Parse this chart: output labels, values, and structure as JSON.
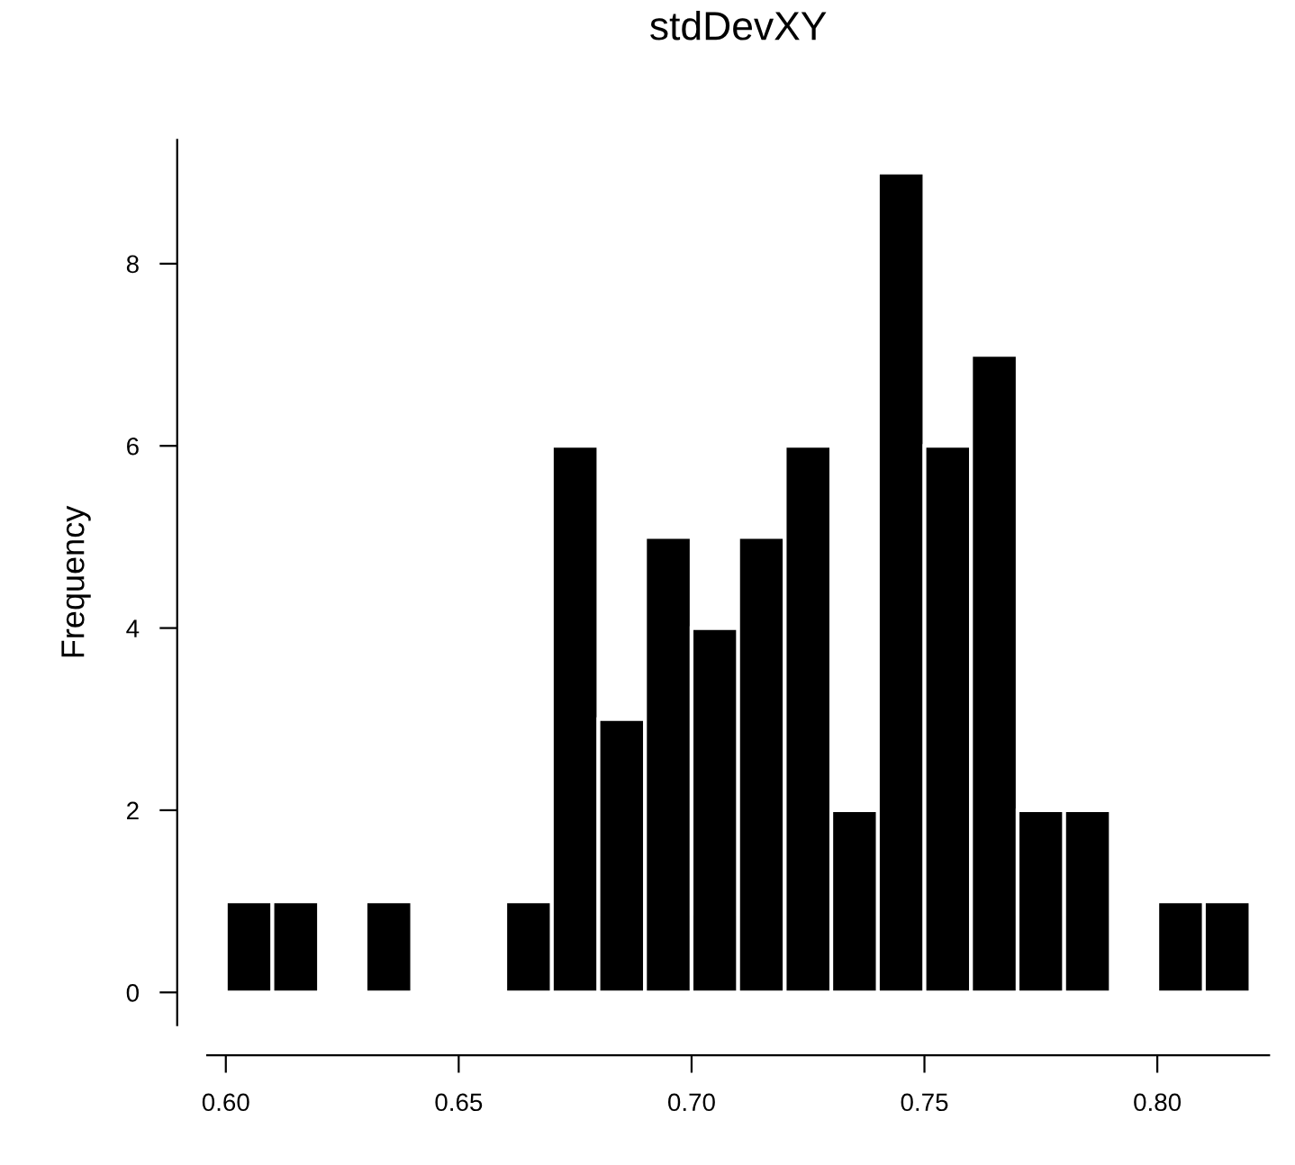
{
  "chart_data": {
    "type": "histogram",
    "title": "stdDevXY",
    "ylabel": "Frequency",
    "bins": [
      0.6,
      0.61,
      0.62,
      0.63,
      0.64,
      0.65,
      0.66,
      0.67,
      0.68,
      0.69,
      0.7,
      0.71,
      0.72,
      0.73,
      0.74,
      0.75,
      0.76,
      0.77,
      0.78,
      0.79,
      0.8,
      0.81,
      0.82
    ],
    "values": [
      1,
      1,
      0,
      1,
      0,
      0,
      1,
      6,
      3,
      5,
      4,
      5,
      6,
      2,
      9,
      6,
      7,
      2,
      2,
      0,
      1,
      1
    ],
    "color": "#000000",
    "xlim": [
      0.596,
      0.824
    ],
    "ylim": [
      -0.36,
      9.36
    ],
    "xticks": [
      {
        "value": 0.6,
        "label": "0.60"
      },
      {
        "value": 0.65,
        "label": "0.65"
      },
      {
        "value": 0.7,
        "label": "0.70"
      },
      {
        "value": 0.75,
        "label": "0.75"
      },
      {
        "value": 0.8,
        "label": "0.80"
      }
    ],
    "yticks": [
      0,
      2,
      4,
      6,
      8
    ],
    "grid": false,
    "legend": false
  }
}
